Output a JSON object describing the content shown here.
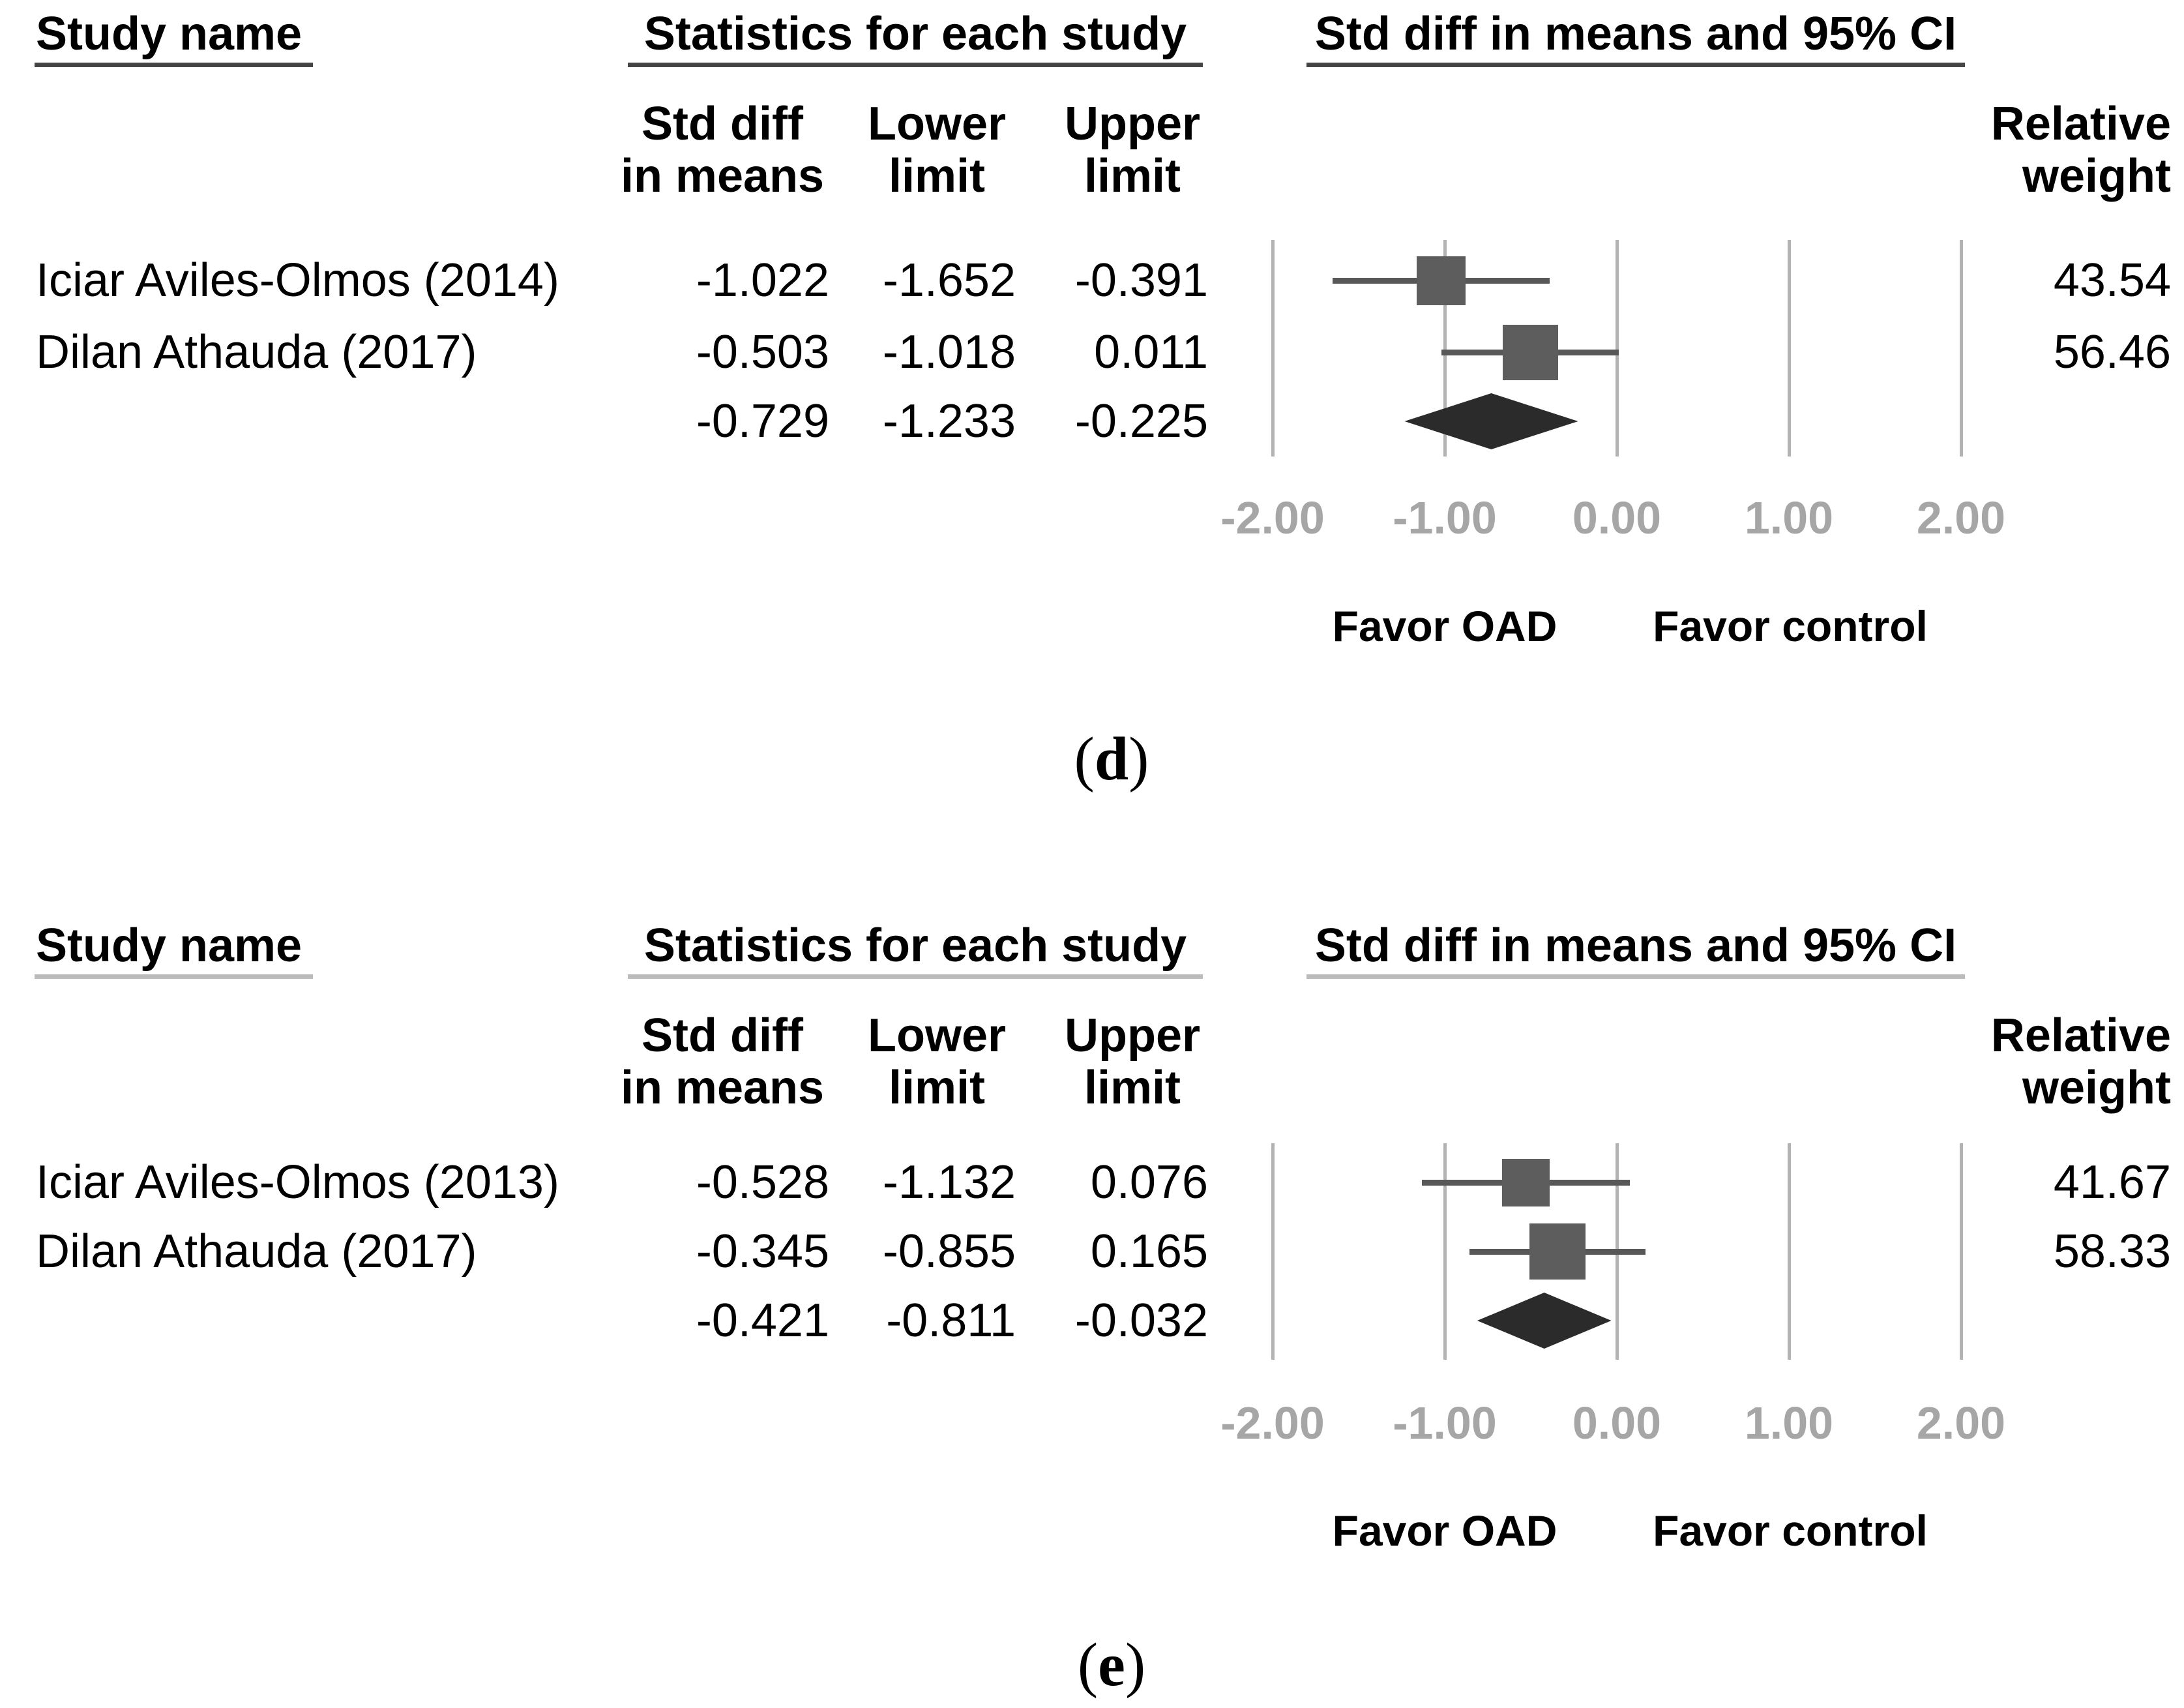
{
  "chart_data": {
    "type": "forest_plot",
    "panels": [
      {
        "panel_id": "d",
        "label_parts": [
          "(",
          "d",
          ")"
        ],
        "headers": {
          "study": "Study name",
          "stats": "Statistics for each study",
          "plot": "Std diff in means and 95% CI",
          "columns": [
            [
              "Std diff",
              "in means"
            ],
            [
              "Lower",
              "limit"
            ],
            [
              "Upper",
              "limit"
            ]
          ],
          "weight": [
            "Relative",
            "weight"
          ]
        },
        "studies": [
          {
            "name": "Iciar Aviles-Olmos (2014)",
            "std_diff": -1.022,
            "lower": -1.652,
            "upper": -0.391,
            "weight": 43.54
          },
          {
            "name": "Dilan Athauda (2017)",
            "std_diff": -0.503,
            "lower": -1.018,
            "upper": 0.011,
            "weight": 56.46
          }
        ],
        "overall": {
          "std_diff": -0.729,
          "lower": -1.233,
          "upper": -0.225
        },
        "axis": {
          "min": -2,
          "max": 2,
          "ticks": [
            -2,
            -1,
            0,
            1,
            2
          ],
          "decimals": 2
        },
        "footer": {
          "favor_left": "Favor OAD",
          "favor_right": "Favor control"
        }
      },
      {
        "panel_id": "e",
        "label_parts": [
          "(",
          "e",
          ")"
        ],
        "headers": {
          "study": "Study name",
          "stats": "Statistics for each study",
          "plot": "Std diff in means and 95% CI",
          "columns": [
            [
              "Std diff",
              "in means"
            ],
            [
              "Lower",
              "limit"
            ],
            [
              "Upper",
              "limit"
            ]
          ],
          "weight": [
            "Relative",
            "weight"
          ]
        },
        "studies": [
          {
            "name": "Iciar Aviles-Olmos (2013)",
            "std_diff": -0.528,
            "lower": -1.132,
            "upper": 0.076,
            "weight": 41.67
          },
          {
            "name": "Dilan Athauda (2017)",
            "std_diff": -0.345,
            "lower": -0.855,
            "upper": 0.165,
            "weight": 58.33
          }
        ],
        "overall": {
          "std_diff": -0.421,
          "lower": -0.811,
          "upper": -0.032
        },
        "axis": {
          "min": -2,
          "max": 2,
          "ticks": [
            -2,
            -1,
            0,
            1,
            2
          ],
          "decimals": 2
        },
        "footer": {
          "favor_left": "Favor OAD",
          "favor_right": "Favor control"
        }
      }
    ],
    "colors": {
      "text": "#000000",
      "axis_label": "#a6a6a6",
      "gridline": "#b3b3b3",
      "square": "#5d5d5d",
      "ci_line": "#585858",
      "diamond": "#2b2b2b",
      "underline_dark": "#454545",
      "underline_light": "#bcbcbc"
    }
  }
}
